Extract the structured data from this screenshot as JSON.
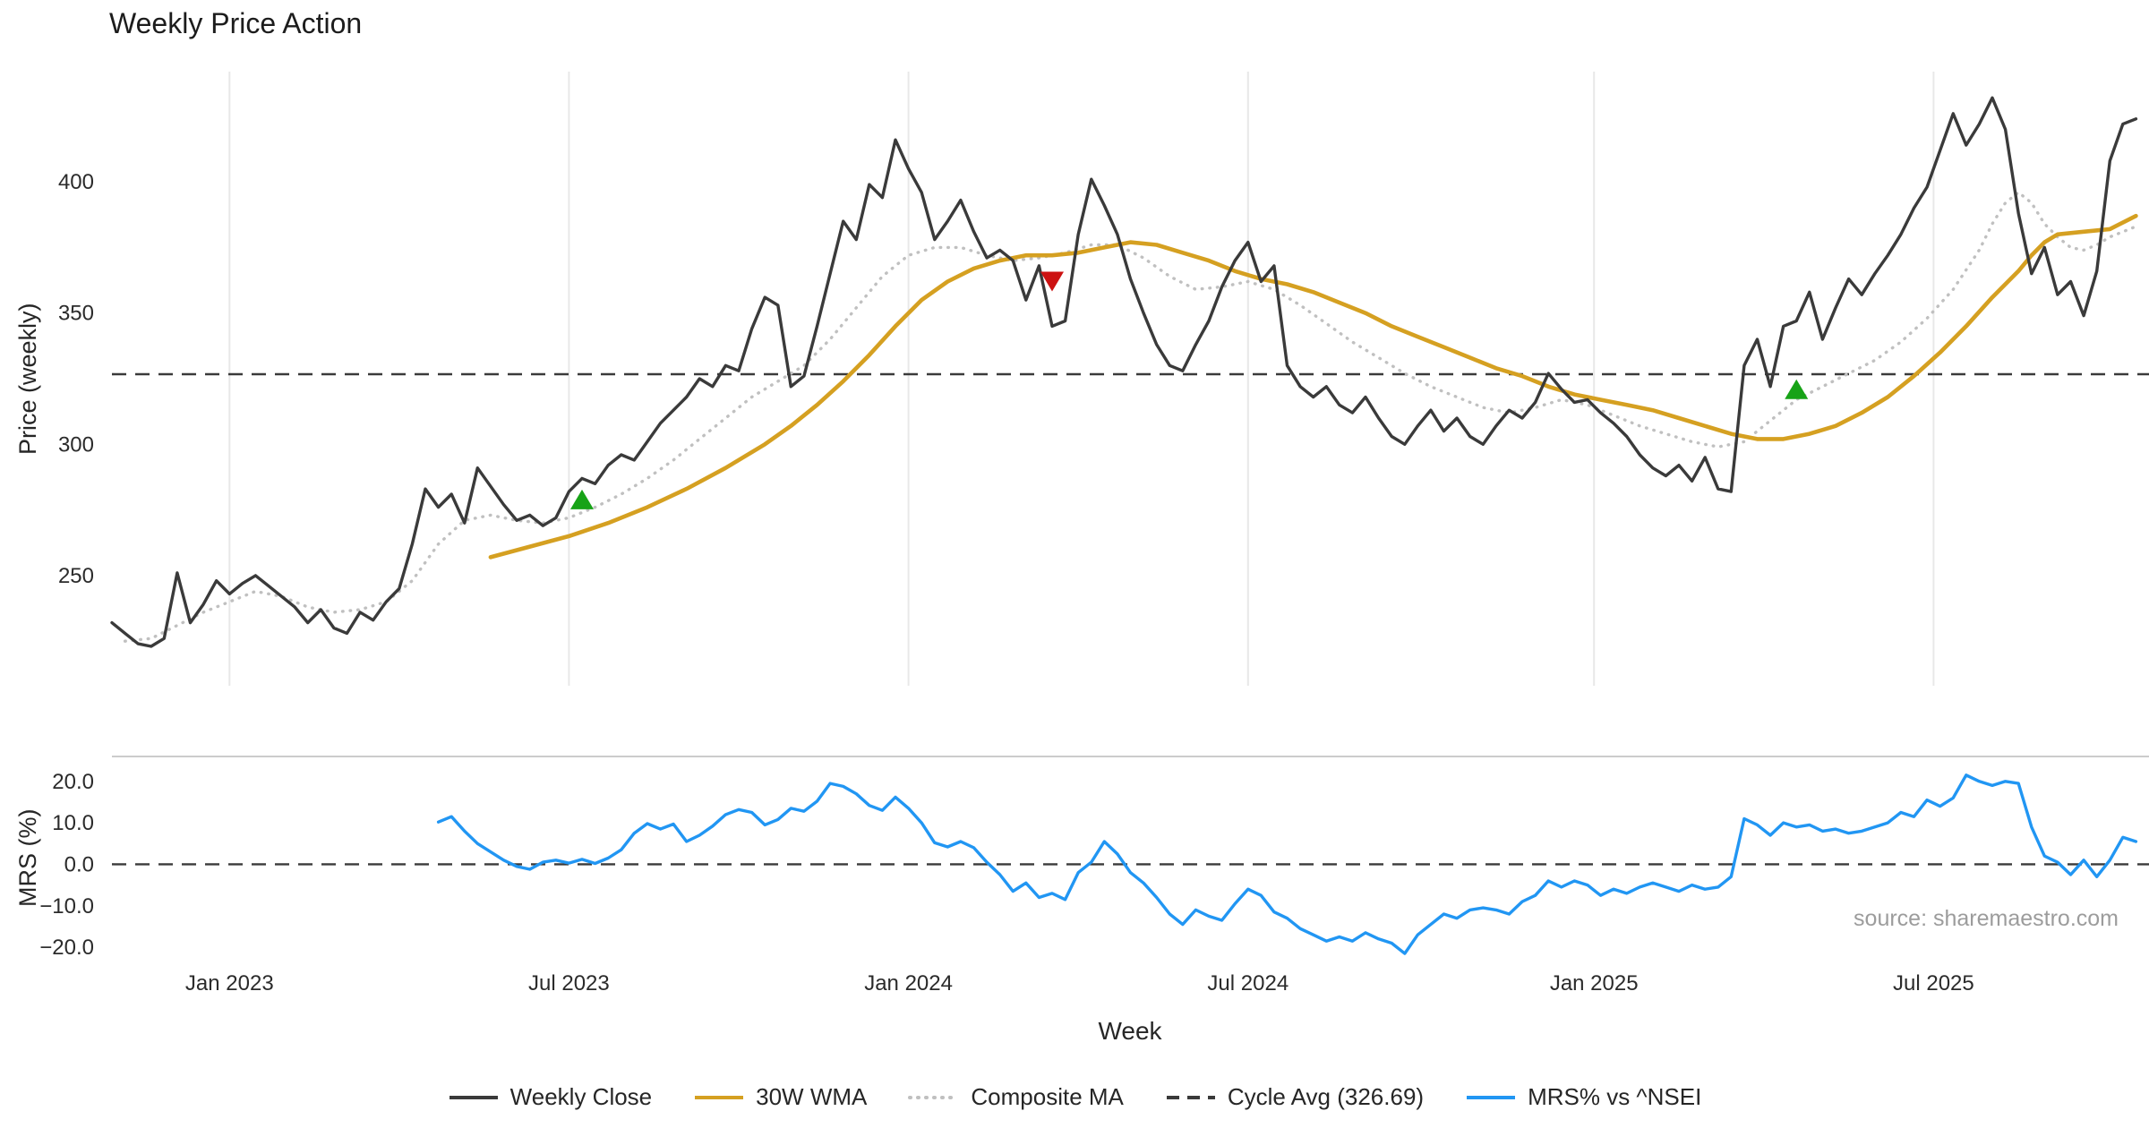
{
  "chart_data": {
    "type": "line",
    "title": "Weekly Price Action",
    "xlabel": "Week",
    "source": "source: sharemaestro.com",
    "x_domain_weeks": [
      0,
      156
    ],
    "x_ticks": [
      {
        "week": 9,
        "label": "Jan 2023"
      },
      {
        "week": 35,
        "label": "Jul 2023"
      },
      {
        "week": 61,
        "label": "Jan 2024"
      },
      {
        "week": 87,
        "label": "Jul 2024"
      },
      {
        "week": 113.5,
        "label": "Jan 2025"
      },
      {
        "week": 139.5,
        "label": "Jul 2025"
      }
    ],
    "panels": [
      {
        "name": "price",
        "ylabel": "Price (weekly)",
        "ylim": [
          208,
          442
        ],
        "yticks": [
          250,
          300,
          350,
          400
        ],
        "cycle_avg": 326.69,
        "series": [
          {
            "name": "Weekly Close",
            "color": "#3a3a3a",
            "width": 3.4,
            "start_week": 0,
            "values": [
              232,
              228,
              224,
              223,
              226,
              251,
              232,
              239,
              248,
              243,
              247,
              250,
              246,
              242,
              238,
              232,
              237,
              230,
              228,
              236,
              233,
              240,
              245,
              262,
              283,
              276,
              281,
              270,
              291,
              284,
              277,
              271,
              273,
              269,
              272,
              282,
              287,
              285,
              292,
              296,
              294,
              301,
              308,
              313,
              318,
              325,
              322,
              330,
              328,
              344,
              356,
              353,
              322,
              326,
              345,
              365,
              385,
              378,
              399,
              394,
              416,
              405,
              396,
              378,
              385,
              393,
              381,
              371,
              374,
              370,
              355,
              368,
              345,
              347,
              380,
              401,
              391,
              380,
              363,
              350,
              338,
              330,
              328,
              338,
              347,
              360,
              370,
              377,
              362,
              368,
              330,
              322,
              318,
              322,
              315,
              312,
              318,
              310,
              303,
              300,
              307,
              313,
              305,
              310,
              303,
              300,
              307,
              313,
              310,
              316,
              327,
              321,
              316,
              317,
              312,
              308,
              303,
              296,
              291,
              288,
              292,
              286,
              295,
              283,
              282,
              330,
              340,
              322,
              345,
              347,
              358,
              340,
              352,
              363,
              357,
              365,
              372,
              380,
              390,
              398,
              412,
              426,
              414,
              422,
              432,
              420,
              388,
              365,
              375,
              357,
              362,
              349,
              366,
              408,
              422,
              424
            ]
          },
          {
            "name": "30W WMA",
            "color": "#d5a021",
            "width": 4.6,
            "points": [
              [
                29,
                257
              ],
              [
                32,
                261
              ],
              [
                35,
                265
              ],
              [
                38,
                270
              ],
              [
                41,
                276
              ],
              [
                44,
                283
              ],
              [
                47,
                291
              ],
              [
                50,
                300
              ],
              [
                52,
                307
              ],
              [
                54,
                315
              ],
              [
                56,
                324
              ],
              [
                58,
                334
              ],
              [
                60,
                345
              ],
              [
                62,
                355
              ],
              [
                64,
                362
              ],
              [
                66,
                367
              ],
              [
                68,
                370
              ],
              [
                70,
                372
              ],
              [
                72,
                372
              ],
              [
                74,
                373
              ],
              [
                76,
                375
              ],
              [
                78,
                377
              ],
              [
                80,
                376
              ],
              [
                82,
                373
              ],
              [
                84,
                370
              ],
              [
                86,
                366
              ],
              [
                88,
                363
              ],
              [
                90,
                361
              ],
              [
                92,
                358
              ],
              [
                94,
                354
              ],
              [
                96,
                350
              ],
              [
                98,
                345
              ],
              [
                100,
                341
              ],
              [
                102,
                337
              ],
              [
                104,
                333
              ],
              [
                106,
                329
              ],
              [
                108,
                326
              ],
              [
                110,
                322
              ],
              [
                112,
                319
              ],
              [
                114,
                317
              ],
              [
                116,
                315
              ],
              [
                118,
                313
              ],
              [
                120,
                310
              ],
              [
                122,
                307
              ],
              [
                124,
                304
              ],
              [
                126,
                302
              ],
              [
                128,
                302
              ],
              [
                130,
                304
              ],
              [
                132,
                307
              ],
              [
                134,
                312
              ],
              [
                136,
                318
              ],
              [
                138,
                326
              ],
              [
                140,
                335
              ],
              [
                142,
                345
              ],
              [
                144,
                356
              ],
              [
                146,
                366
              ],
              [
                147,
                372
              ],
              [
                148,
                377
              ],
              [
                149,
                380
              ],
              [
                151,
                381
              ],
              [
                153,
                382
              ],
              [
                155,
                387
              ]
            ]
          },
          {
            "name": "Composite MA",
            "color": "#c0c0c0",
            "width": 3.4,
            "dash": "0.6 8",
            "points": [
              [
                1,
                225
              ],
              [
                3,
                226
              ],
              [
                5,
                231
              ],
              [
                7,
                236
              ],
              [
                9,
                240
              ],
              [
                11,
                244
              ],
              [
                13,
                242
              ],
              [
                15,
                238
              ],
              [
                17,
                236
              ],
              [
                19,
                237
              ],
              [
                21,
                240
              ],
              [
                23,
                248
              ],
              [
                25,
                262
              ],
              [
                27,
                271
              ],
              [
                29,
                273
              ],
              [
                31,
                271
              ],
              [
                33,
                270
              ],
              [
                35,
                272
              ],
              [
                37,
                276
              ],
              [
                39,
                281
              ],
              [
                41,
                287
              ],
              [
                43,
                294
              ],
              [
                45,
                302
              ],
              [
                47,
                310
              ],
              [
                49,
                318
              ],
              [
                51,
                324
              ],
              [
                53,
                330
              ],
              [
                55,
                340
              ],
              [
                57,
                352
              ],
              [
                59,
                364
              ],
              [
                61,
                372
              ],
              [
                63,
                375
              ],
              [
                65,
                375
              ],
              [
                67,
                372
              ],
              [
                69,
                370
              ],
              [
                71,
                371
              ],
              [
                73,
                373
              ],
              [
                75,
                376
              ],
              [
                77,
                376
              ],
              [
                79,
                371
              ],
              [
                81,
                364
              ],
              [
                83,
                359
              ],
              [
                85,
                360
              ],
              [
                87,
                362
              ],
              [
                89,
                359
              ],
              [
                91,
                353
              ],
              [
                93,
                346
              ],
              [
                95,
                339
              ],
              [
                97,
                333
              ],
              [
                99,
                327
              ],
              [
                101,
                322
              ],
              [
                103,
                318
              ],
              [
                105,
                314
              ],
              [
                107,
                312
              ],
              [
                109,
                314
              ],
              [
                111,
                317
              ],
              [
                113,
                315
              ],
              [
                115,
                311
              ],
              [
                117,
                307
              ],
              [
                119,
                304
              ],
              [
                121,
                301
              ],
              [
                123,
                299
              ],
              [
                125,
                301
              ],
              [
                127,
                309
              ],
              [
                129,
                317
              ],
              [
                131,
                322
              ],
              [
                133,
                327
              ],
              [
                135,
                332
              ],
              [
                137,
                339
              ],
              [
                139,
                348
              ],
              [
                141,
                359
              ],
              [
                143,
                374
              ],
              [
                144,
                384
              ],
              [
                145,
                392
              ],
              [
                146,
                396
              ],
              [
                147,
                392
              ],
              [
                148,
                384
              ],
              [
                149,
                379
              ],
              [
                150,
                375
              ],
              [
                151,
                374
              ],
              [
                152,
                376
              ],
              [
                153,
                379
              ],
              [
                155,
                383
              ]
            ]
          }
        ],
        "markers": [
          {
            "shape": "triangle-up",
            "color": "#17a317",
            "week": 36,
            "value": 279
          },
          {
            "shape": "triangle-down",
            "color": "#cc1212",
            "week": 72,
            "value": 362
          },
          {
            "shape": "triangle-up",
            "color": "#17a317",
            "week": 129,
            "value": 321
          }
        ]
      },
      {
        "name": "mrs",
        "ylabel": "MRS (%)",
        "ylim": [
          -23,
          26
        ],
        "yticks": [
          -20,
          -10,
          0,
          10,
          20
        ],
        "zero_line": true,
        "series": [
          {
            "name": "MRS% vs ^NSEI",
            "color": "#2196f3",
            "width": 3.4,
            "start_week": 25,
            "values": [
              10.2,
              11.5,
              8.0,
              5.0,
              3.0,
              1.0,
              -0.5,
              -1.2,
              0.5,
              1.0,
              0.3,
              1.2,
              0.2,
              1.5,
              3.5,
              7.5,
              9.8,
              8.5,
              9.7,
              5.5,
              7.0,
              9.2,
              12.0,
              13.2,
              12.5,
              9.5,
              10.8,
              13.5,
              12.8,
              15.2,
              19.5,
              18.8,
              17.0,
              14.2,
              13.0,
              16.2,
              13.5,
              10.0,
              5.2,
              4.2,
              5.5,
              4.0,
              0.5,
              -2.5,
              -6.5,
              -4.5,
              -8.0,
              -7.0,
              -8.5,
              -2.0,
              0.5,
              5.5,
              2.5,
              -2.0,
              -4.5,
              -8.0,
              -12.0,
              -14.5,
              -11.0,
              -12.5,
              -13.5,
              -9.5,
              -6.0,
              -7.5,
              -11.5,
              -13.0,
              -15.5,
              -17.0,
              -18.5,
              -17.5,
              -18.5,
              -16.5,
              -18.0,
              -19.0,
              -21.5,
              -17.0,
              -14.5,
              -12.0,
              -13.0,
              -11.0,
              -10.5,
              -11.0,
              -12.0,
              -9.0,
              -7.5,
              -4.0,
              -5.5,
              -4.0,
              -5.0,
              -7.5,
              -6.0,
              -7.0,
              -5.5,
              -4.5,
              -5.5,
              -6.5,
              -5.0,
              -6.0,
              -5.5,
              -3.0,
              11.0,
              9.5,
              7.0,
              10.0,
              9.0,
              9.5,
              8.0,
              8.5,
              7.5,
              8.0,
              9.0,
              10.0,
              12.5,
              11.5,
              15.5,
              14.0,
              16.0,
              21.5,
              20.0,
              19.0,
              20.0,
              19.5,
              9.0,
              2.0,
              0.5,
              -2.5,
              1.0,
              -3.0,
              1.0,
              6.5,
              5.5
            ]
          }
        ]
      }
    ],
    "legend": [
      {
        "label": "Weekly Close",
        "color": "#3a3a3a",
        "style": "solid"
      },
      {
        "label": "30W WMA",
        "color": "#d5a021",
        "style": "solid"
      },
      {
        "label": "Composite MA",
        "color": "#c0c0c0",
        "style": "dotted"
      },
      {
        "label": "Cycle Avg (326.69)",
        "color": "#3a3a3a",
        "style": "dashed"
      },
      {
        "label": "MRS% vs ^NSEI",
        "color": "#2196f3",
        "style": "solid"
      }
    ]
  }
}
